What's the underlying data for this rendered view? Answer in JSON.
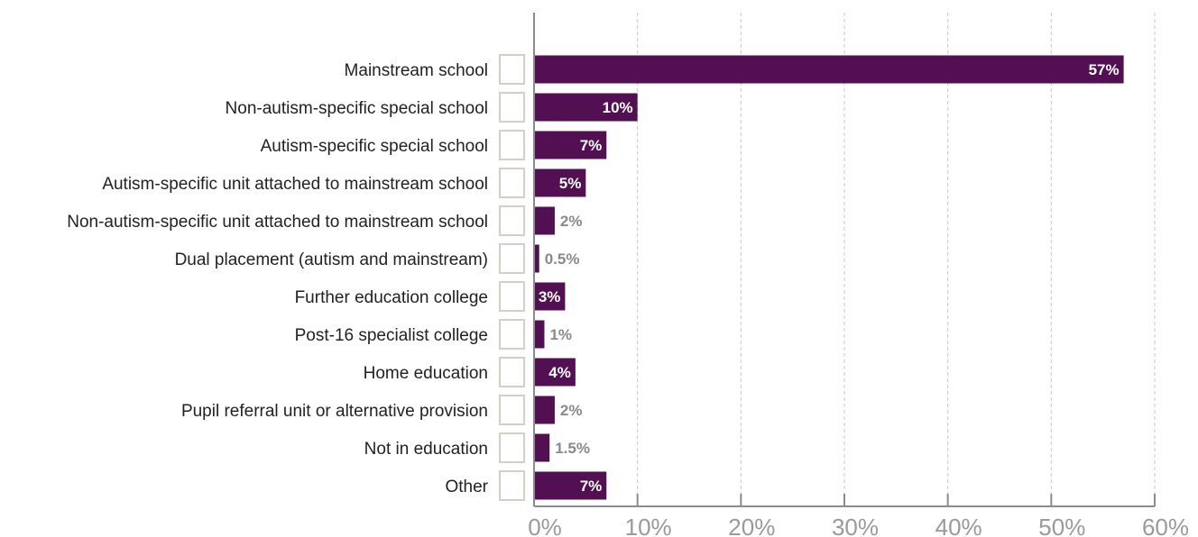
{
  "chart_data": {
    "type": "bar",
    "orientation": "horizontal",
    "categories": [
      "Mainstream school",
      "Non-autism-specific special school",
      "Autism-specific special school",
      "Autism-specific unit attached to mainstream school",
      "Non-autism-specific unit attached to mainstream school",
      "Dual placement (autism and mainstream)",
      "Further education college",
      "Post-16 specialist college",
      "Home education",
      "Pupil referral unit or alternative provision",
      "Not in education",
      "Other"
    ],
    "values": [
      57,
      10,
      7,
      5,
      2,
      0.5,
      3,
      1,
      4,
      2,
      1.5,
      7
    ],
    "value_labels": [
      "57%",
      "10%",
      "7%",
      "5%",
      "2%",
      "0.5%",
      "3%",
      "1%",
      "4%",
      "2%",
      "1.5%",
      "7%"
    ],
    "xlim": [
      0,
      60
    ],
    "x_ticks": [
      0,
      10,
      20,
      30,
      40,
      50,
      60
    ],
    "x_tick_labels": [
      "0%",
      "10%",
      "20%",
      "30%",
      "40%",
      "50%",
      "60%"
    ],
    "title": "",
    "xlabel": "",
    "ylabel": "",
    "grid": "vertical dashed",
    "legend": "none"
  },
  "colors": {
    "bar": "#521052",
    "label_inside": "#ffffff",
    "label_outside": "#8a8a8a",
    "category_text": "#222222",
    "tick_text": "#9a9a9a"
  }
}
